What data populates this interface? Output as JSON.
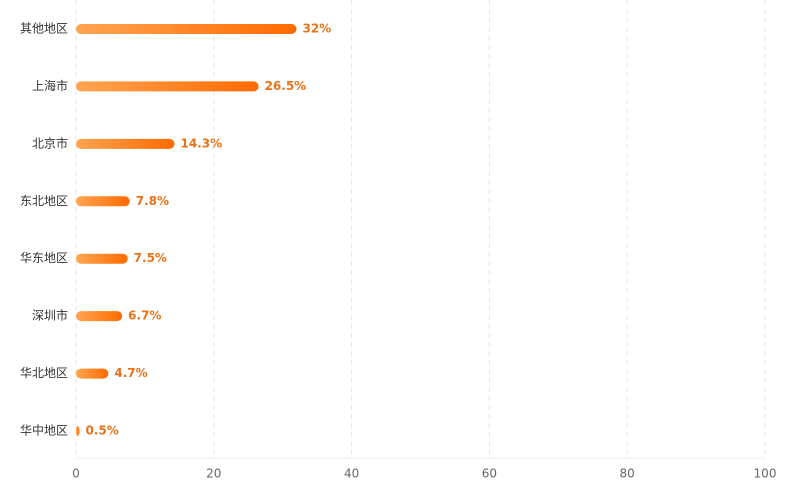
{
  "chart_data": {
    "type": "bar",
    "orientation": "horizontal",
    "categories": [
      "其他地区",
      "上海市",
      "北京市",
      "东北地区",
      "华东地区",
      "深圳市",
      "华北地区",
      "华中地区"
    ],
    "values": [
      32,
      26.5,
      14.3,
      7.8,
      7.5,
      6.7,
      4.7,
      0.5
    ],
    "value_labels": [
      "32%",
      "26.5%",
      "14.3%",
      "7.8%",
      "7.5%",
      "6.7%",
      "4.7%",
      "0.5%"
    ],
    "colors": [
      "#ffa552",
      "#ff6a00"
    ],
    "label_color": "#e8731a",
    "xlim": [
      0,
      100
    ],
    "xticks": [
      0,
      20,
      40,
      60,
      80,
      100
    ],
    "grid": true
  }
}
